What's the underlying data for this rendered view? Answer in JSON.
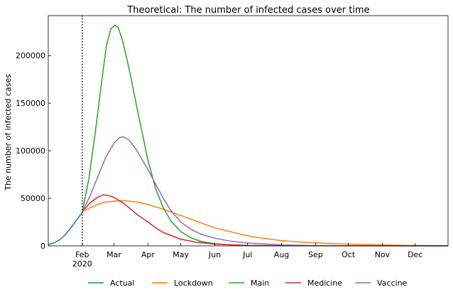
{
  "chart_data": {
    "type": "line",
    "title": "Theoretical: The number of infected cases over time",
    "xlabel": "",
    "ylabel": "The number of infected cases",
    "xlim": [
      "2020-01-01",
      "2020-12-31"
    ],
    "ylim": [
      0,
      242000
    ],
    "x_ticks": [
      {
        "date": "2020-02-01",
        "label": "Feb",
        "sublabel": "2020"
      },
      {
        "date": "2020-03-01",
        "label": "Mar"
      },
      {
        "date": "2020-04-01",
        "label": "Apr"
      },
      {
        "date": "2020-05-01",
        "label": "May"
      },
      {
        "date": "2020-06-01",
        "label": "Jun"
      },
      {
        "date": "2020-07-01",
        "label": "Jul"
      },
      {
        "date": "2020-08-01",
        "label": "Aug"
      },
      {
        "date": "2020-09-01",
        "label": "Sep"
      },
      {
        "date": "2020-10-01",
        "label": "Oct"
      },
      {
        "date": "2020-11-01",
        "label": "Nov"
      },
      {
        "date": "2020-12-01",
        "label": "Dec"
      }
    ],
    "y_ticks": [
      0,
      50000,
      100000,
      150000,
      200000
    ],
    "vline": {
      "date": "2020-02-01",
      "style": "dotted"
    },
    "legend_position": "bottom-center",
    "grid": false,
    "series": [
      {
        "name": "Actual",
        "color": "#1f77b4",
        "points": [
          [
            "2020-01-01",
            1500
          ],
          [
            "2020-01-06",
            3000
          ],
          [
            "2020-01-11",
            6000
          ],
          [
            "2020-01-16",
            11000
          ],
          [
            "2020-01-21",
            18000
          ],
          [
            "2020-01-26",
            26000
          ],
          [
            "2020-02-01",
            35000
          ]
        ]
      },
      {
        "name": "Lockdown",
        "color": "#ff7f0e",
        "points": [
          [
            "2020-02-01",
            36000
          ],
          [
            "2020-02-08",
            40000
          ],
          [
            "2020-02-15",
            43500
          ],
          [
            "2020-02-22",
            46000
          ],
          [
            "2020-03-01",
            47000
          ],
          [
            "2020-03-08",
            47500
          ],
          [
            "2020-03-15",
            47000
          ],
          [
            "2020-03-22",
            46000
          ],
          [
            "2020-04-01",
            43500
          ],
          [
            "2020-04-15",
            38500
          ],
          [
            "2020-05-01",
            32000
          ],
          [
            "2020-05-15",
            26000
          ],
          [
            "2020-06-01",
            19000
          ],
          [
            "2020-06-15",
            15000
          ],
          [
            "2020-07-01",
            10500
          ],
          [
            "2020-07-15",
            8000
          ],
          [
            "2020-08-01",
            5500
          ],
          [
            "2020-08-15",
            4200
          ],
          [
            "2020-09-01",
            3200
          ],
          [
            "2020-10-01",
            1800
          ],
          [
            "2020-11-01",
            900
          ],
          [
            "2020-12-01",
            400
          ],
          [
            "2020-12-31",
            200
          ]
        ]
      },
      {
        "name": "Main",
        "color": "#2ca02c",
        "points": [
          [
            "2020-02-01",
            36000
          ],
          [
            "2020-02-07",
            70000
          ],
          [
            "2020-02-13",
            120000
          ],
          [
            "2020-02-19",
            175000
          ],
          [
            "2020-02-23",
            210000
          ],
          [
            "2020-02-27",
            228000
          ],
          [
            "2020-03-02",
            232000
          ],
          [
            "2020-03-05",
            229000
          ],
          [
            "2020-03-09",
            215000
          ],
          [
            "2020-03-15",
            185000
          ],
          [
            "2020-03-22",
            145000
          ],
          [
            "2020-04-01",
            90000
          ],
          [
            "2020-04-08",
            60000
          ],
          [
            "2020-04-15",
            40000
          ],
          [
            "2020-04-22",
            26000
          ],
          [
            "2020-05-01",
            15000
          ],
          [
            "2020-05-10",
            8500
          ],
          [
            "2020-05-20",
            4500
          ],
          [
            "2020-06-01",
            2200
          ],
          [
            "2020-06-15",
            1000
          ],
          [
            "2020-07-01",
            400
          ],
          [
            "2020-08-01",
            100
          ],
          [
            "2020-12-31",
            0
          ]
        ]
      },
      {
        "name": "Medicine",
        "color": "#d62728",
        "points": [
          [
            "2020-02-01",
            36000
          ],
          [
            "2020-02-08",
            45000
          ],
          [
            "2020-02-15",
            51000
          ],
          [
            "2020-02-20",
            53500
          ],
          [
            "2020-02-25",
            53000
          ],
          [
            "2020-03-01",
            51000
          ],
          [
            "2020-03-08",
            46000
          ],
          [
            "2020-03-15",
            40000
          ],
          [
            "2020-03-22",
            33000
          ],
          [
            "2020-04-01",
            25000
          ],
          [
            "2020-04-08",
            19000
          ],
          [
            "2020-04-15",
            14000
          ],
          [
            "2020-05-01",
            7000
          ],
          [
            "2020-05-15",
            3800
          ],
          [
            "2020-06-01",
            1800
          ],
          [
            "2020-07-01",
            500
          ],
          [
            "2020-08-01",
            150
          ],
          [
            "2020-12-31",
            0
          ]
        ]
      },
      {
        "name": "Vaccine",
        "color": "#9467bd",
        "points": [
          [
            "2020-02-01",
            36000
          ],
          [
            "2020-02-08",
            52000
          ],
          [
            "2020-02-15",
            72000
          ],
          [
            "2020-02-22",
            92000
          ],
          [
            "2020-03-01",
            108000
          ],
          [
            "2020-03-06",
            114000
          ],
          [
            "2020-03-10",
            114500
          ],
          [
            "2020-03-15",
            111000
          ],
          [
            "2020-03-22",
            100000
          ],
          [
            "2020-04-01",
            80000
          ],
          [
            "2020-04-08",
            65000
          ],
          [
            "2020-04-15",
            50000
          ],
          [
            "2020-04-22",
            37000
          ],
          [
            "2020-05-01",
            25000
          ],
          [
            "2020-05-10",
            17500
          ],
          [
            "2020-05-20",
            12000
          ],
          [
            "2020-06-01",
            8000
          ],
          [
            "2020-06-15",
            5000
          ],
          [
            "2020-07-01",
            3000
          ],
          [
            "2020-08-01",
            1000
          ],
          [
            "2020-09-01",
            300
          ],
          [
            "2020-12-31",
            0
          ]
        ]
      }
    ]
  }
}
